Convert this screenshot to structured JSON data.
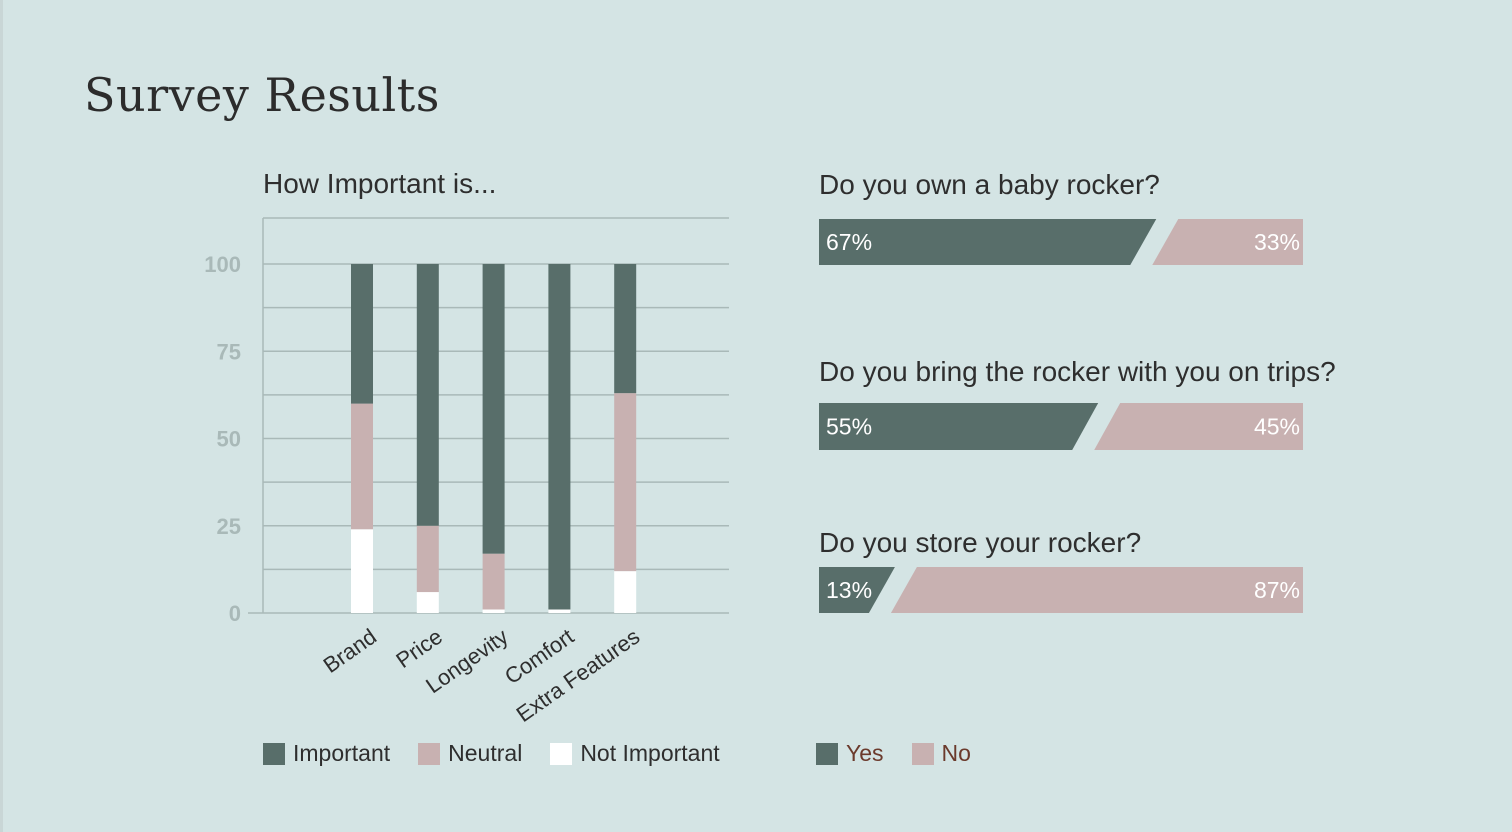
{
  "page": {
    "title": "Survey Results"
  },
  "colors": {
    "important": "#586e6a",
    "neutral": "#c8b1b1",
    "not_important": "#ffffff",
    "yes": "#586e6a",
    "no": "#c8b1b1",
    "grid": "#a9b9b8",
    "tick": "#a9b9b8"
  },
  "chart_data": [
    {
      "type": "bar",
      "stacked": true,
      "title": "How Important is...",
      "categories": [
        "Brand",
        "Price",
        "Longevity",
        "Comfort",
        "Extra Features"
      ],
      "series": [
        {
          "name": "Important",
          "values": [
            40,
            75,
            83,
            99,
            37
          ]
        },
        {
          "name": "Neutral",
          "values": [
            36,
            19,
            16,
            0,
            51
          ]
        },
        {
          "name": "Not Important",
          "values": [
            24,
            6,
            1,
            1,
            12
          ]
        }
      ],
      "yticks": [
        "0",
        "25",
        "50",
        "75",
        "100"
      ],
      "ylim": [
        0,
        110
      ],
      "grid": true,
      "legend": "bottom"
    },
    {
      "type": "bar",
      "stacked": true,
      "orientation": "horizontal",
      "categories": [
        "Do you own a baby rocker?",
        "Do you bring the rocker with you on trips?",
        "Do you store your rocker?"
      ],
      "series": [
        {
          "name": "Yes",
          "values": [
            67,
            55,
            13
          ],
          "labels": [
            "67%",
            "55%",
            "13%"
          ]
        },
        {
          "name": "No",
          "values": [
            33,
            45,
            87
          ],
          "labels": [
            "33%",
            "45%",
            "87%"
          ]
        }
      ],
      "legend": "bottom"
    }
  ],
  "legend_left": [
    {
      "label": "Important",
      "color": "#586e6a"
    },
    {
      "label": "Neutral",
      "color": "#c8b1b1"
    },
    {
      "label": "Not Important",
      "color": "#ffffff"
    }
  ],
  "legend_right": [
    {
      "label": "Yes",
      "color": "#586e6a"
    },
    {
      "label": "No",
      "color": "#c8b1b1"
    }
  ]
}
